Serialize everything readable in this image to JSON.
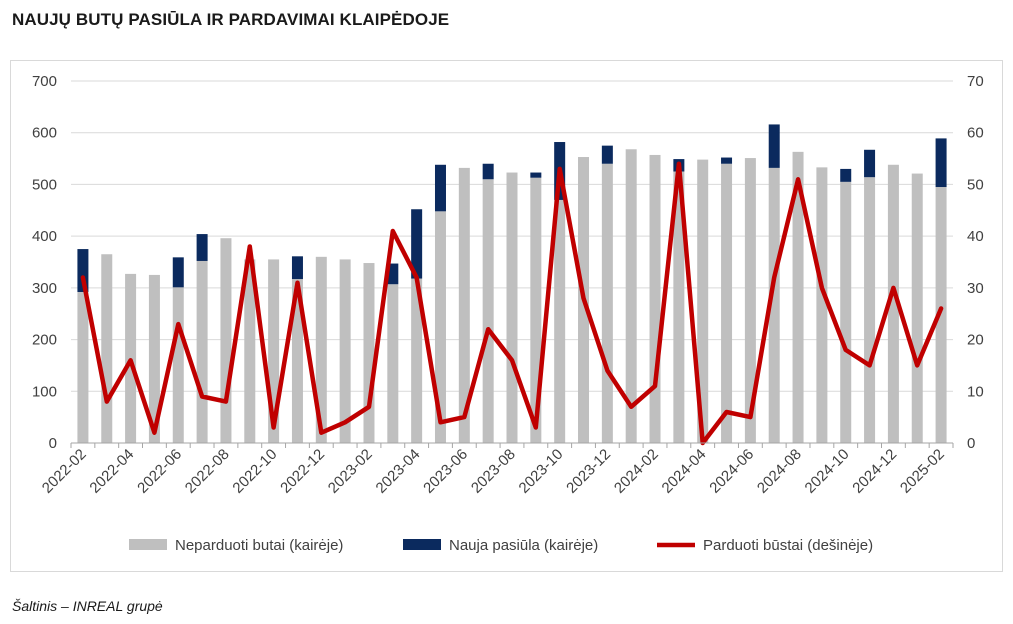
{
  "title": "NAUJŲ BUTŲ PASIŪLA IR PARDAVIMAI KLAIPĖDOJE",
  "source": "Šaltinis – INREAL grupė",
  "chart_data": {
    "type": "bar+line",
    "title": "NAUJŲ BUTŲ PASIŪLA IR PARDAVIMAI KLAIPĖDOJE",
    "categories": [
      "2022-02",
      "2022-03",
      "2022-04",
      "2022-05",
      "2022-06",
      "2022-07",
      "2022-08",
      "2022-09",
      "2022-10",
      "2022-11",
      "2022-12",
      "2023-01",
      "2023-02",
      "2023-03",
      "2023-04",
      "2023-05",
      "2023-06",
      "2023-07",
      "2023-08",
      "2023-09",
      "2023-10",
      "2023-11",
      "2023-12",
      "2024-01",
      "2024-02",
      "2024-03",
      "2024-04",
      "2024-05",
      "2024-06",
      "2024-07",
      "2024-08",
      "2024-09",
      "2024-10",
      "2024-11",
      "2024-12",
      "2025-01",
      "2025-02"
    ],
    "tick_labels": [
      "2022-02",
      "2022-04",
      "2022-06",
      "2022-08",
      "2022-10",
      "2022-12",
      "2023-02",
      "2023-04",
      "2023-06",
      "2023-08",
      "2023-10",
      "2023-12",
      "2024-02",
      "2024-04",
      "2024-06",
      "2024-08",
      "2024-10",
      "2024-12",
      "2025-02"
    ],
    "y_left_lim": [
      0,
      700
    ],
    "y_left_ticks": [
      0,
      100,
      200,
      300,
      400,
      500,
      600,
      700
    ],
    "y_right_lim": [
      0,
      70
    ],
    "y_right_ticks": [
      0,
      10,
      20,
      30,
      40,
      50,
      60,
      70
    ],
    "legend_position": "bottom",
    "grid": true,
    "series": [
      {
        "name": "Neparduoti butai (kairėje)",
        "type": "stacked-bar",
        "axis": "left",
        "color": "#bfbfbf",
        "values": [
          292,
          365,
          327,
          325,
          301,
          352,
          396,
          355,
          355,
          317,
          360,
          355,
          348,
          307,
          318,
          448,
          532,
          510,
          523,
          513,
          470,
          553,
          540,
          568,
          557,
          525,
          548,
          540,
          551,
          532,
          563,
          533,
          505,
          514,
          538,
          521,
          495
        ]
      },
      {
        "name": "Nauja pasiūla (kairėje)",
        "type": "stacked-bar",
        "axis": "left",
        "color": "#0b2a5e",
        "values": [
          83,
          0,
          0,
          0,
          58,
          52,
          0,
          0,
          0,
          44,
          0,
          0,
          0,
          40,
          134,
          90,
          0,
          30,
          0,
          10,
          112,
          0,
          35,
          0,
          0,
          24,
          0,
          12,
          0,
          84,
          0,
          0,
          25,
          53,
          0,
          0,
          94
        ]
      },
      {
        "name": "Parduoti būstai (dešinėje)",
        "type": "line",
        "axis": "right",
        "color": "#c00000",
        "values": [
          32,
          8,
          16,
          2,
          23,
          9,
          8,
          38,
          3,
          31,
          2,
          4,
          7,
          41,
          32,
          4,
          5,
          22,
          16,
          3,
          53,
          28,
          14,
          7,
          11,
          54,
          0,
          6,
          5,
          32,
          51,
          30,
          18,
          15,
          30,
          15,
          26
        ]
      }
    ]
  }
}
